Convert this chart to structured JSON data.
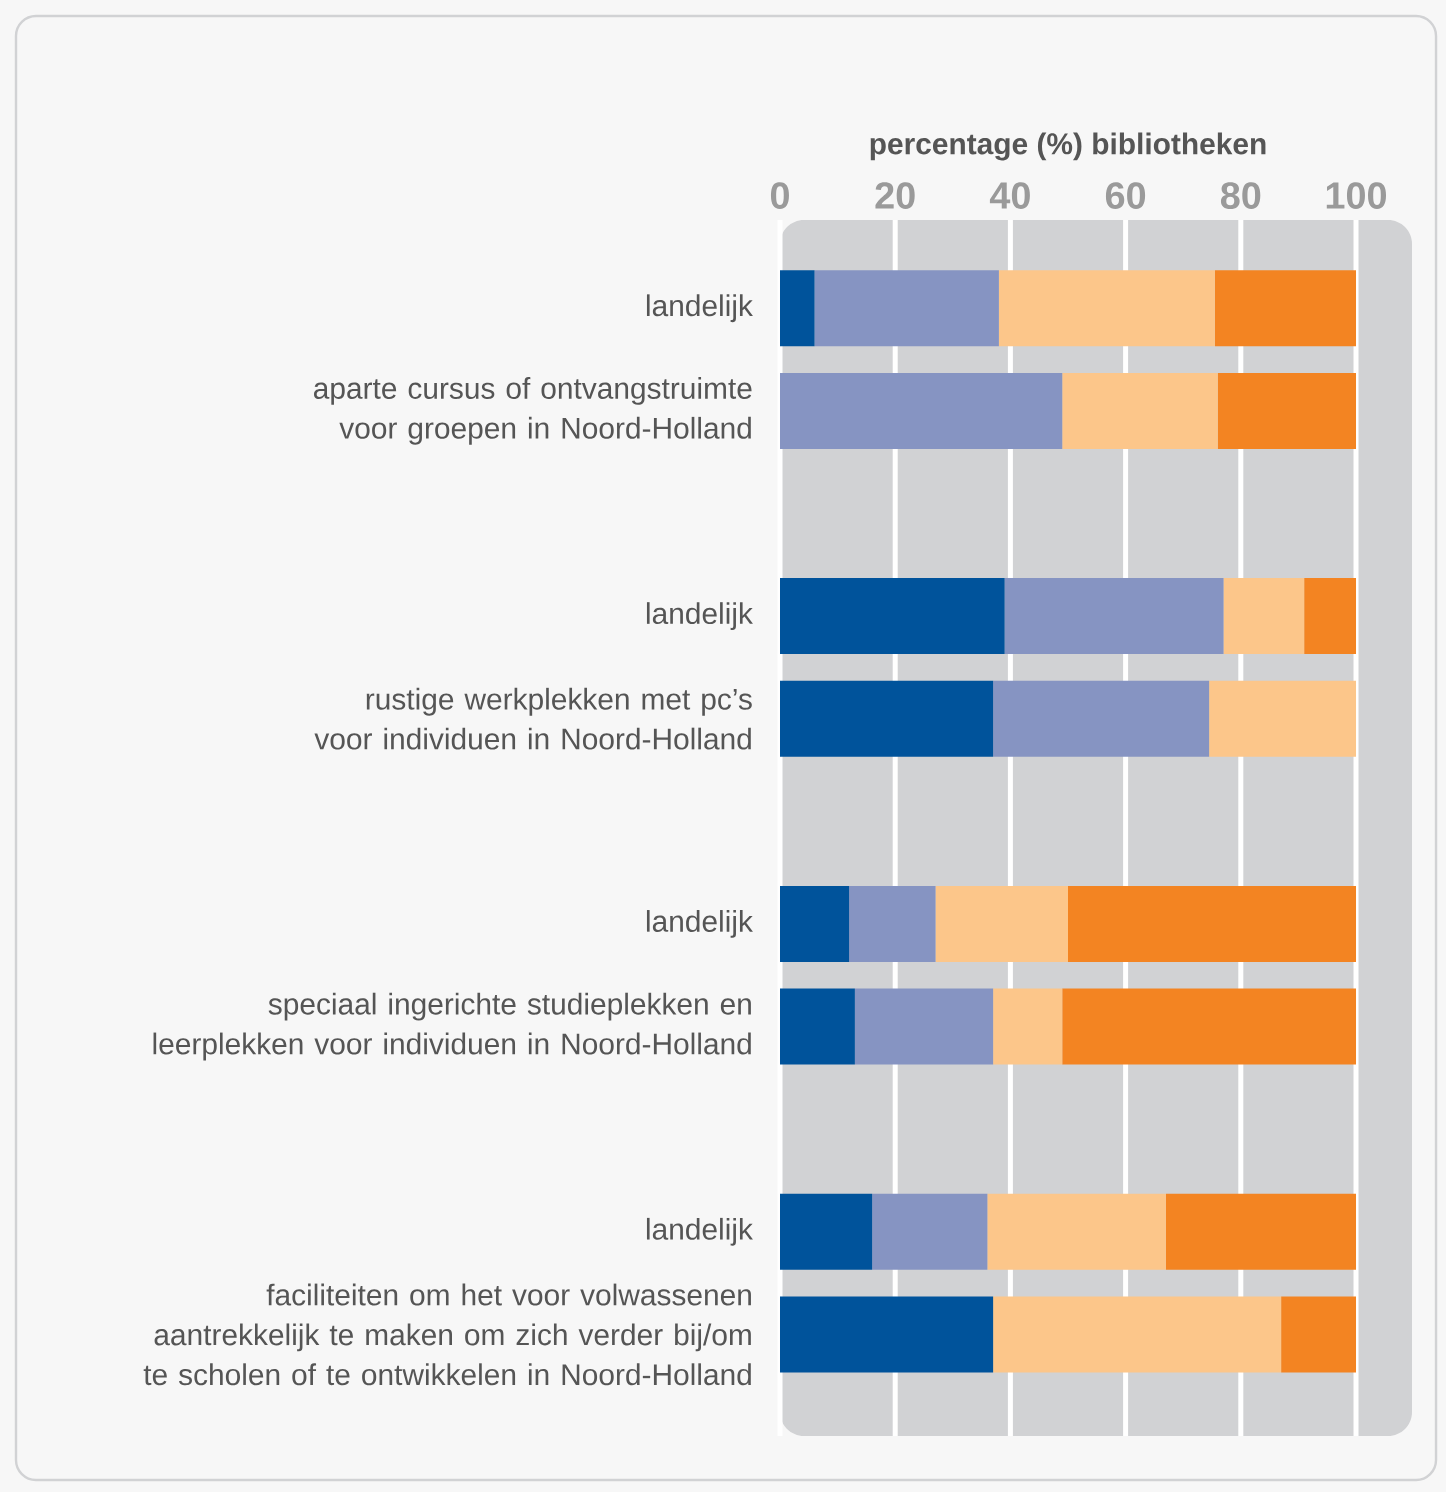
{
  "chart_data": {
    "type": "bar",
    "orientation": "horizontal",
    "stacked": true,
    "xlabel": "percentage (%) bibliotheken",
    "categories": [
      "landelijk",
      "aparte cursus of ontvangstruimte voor groepen in Noord-Holland",
      null,
      "landelijk",
      "rustige werkplekken met pc’s voor individuen in Noord-Holland",
      null,
      "landelijk",
      "speciaal ingerichte studieplekken en leerplekken voor individuen in Noord-Holland",
      null,
      "landelijk",
      "faciliteiten om het voor volwassenen aantrekkelijk te maken om zich verder bij/om te scholen of te ontwikkelen in Noord-Holland"
    ],
    "series": [
      {
        "color": "#00539b",
        "values": [
          6,
          0,
          null,
          39,
          37,
          null,
          12,
          13,
          null,
          16,
          37
        ]
      },
      {
        "color": "#8694c2",
        "values": [
          32,
          49,
          null,
          38,
          37.5,
          null,
          15,
          24,
          null,
          20,
          0
        ]
      },
      {
        "color": "#fcc68a",
        "values": [
          37.5,
          27,
          null,
          14,
          25.5,
          null,
          23,
          12,
          null,
          31,
          50
        ]
      },
      {
        "color": "#f38422",
        "values": [
          24.5,
          24,
          null,
          9,
          0,
          null,
          50,
          51,
          null,
          33,
          13
        ]
      }
    ],
    "xlim": [
      0,
      100
    ],
    "xticks": [
      0,
      20,
      40,
      60,
      80,
      100
    ],
    "grid": "x"
  }
}
